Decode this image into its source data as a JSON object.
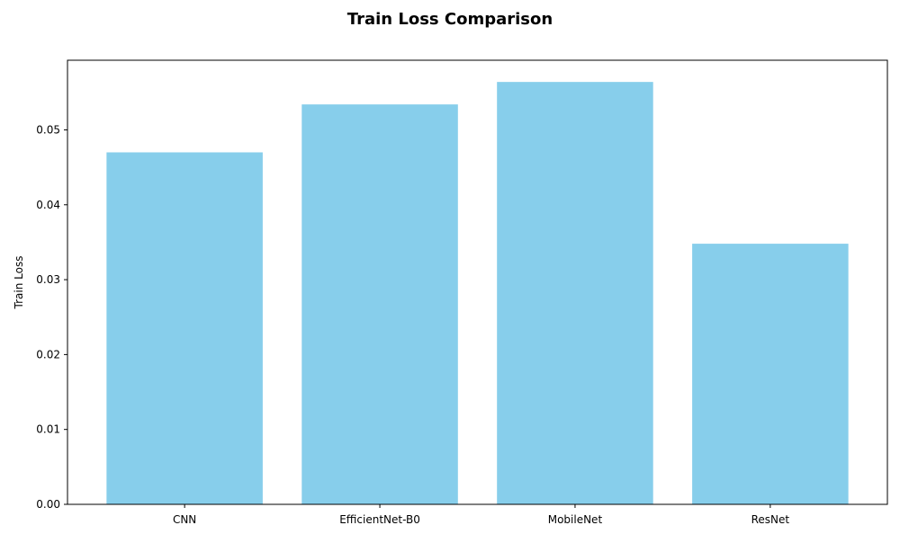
{
  "chart_data": {
    "type": "bar",
    "title": "Train Loss Comparison",
    "xlabel": "",
    "ylabel": "Train Loss",
    "categories": [
      "CNN",
      "EfficientNet-B0",
      "MobileNet",
      "ResNet"
    ],
    "values": [
      0.047,
      0.0534,
      0.0564,
      0.0348
    ],
    "ylim": [
      0,
      0.0593
    ],
    "yticks": [
      0.0,
      0.01,
      0.02,
      0.03,
      0.04,
      0.05
    ],
    "ytick_labels": [
      "0.00",
      "0.01",
      "0.02",
      "0.03",
      "0.04",
      "0.05"
    ],
    "grid": false,
    "bar_color": "#87ceeb"
  }
}
